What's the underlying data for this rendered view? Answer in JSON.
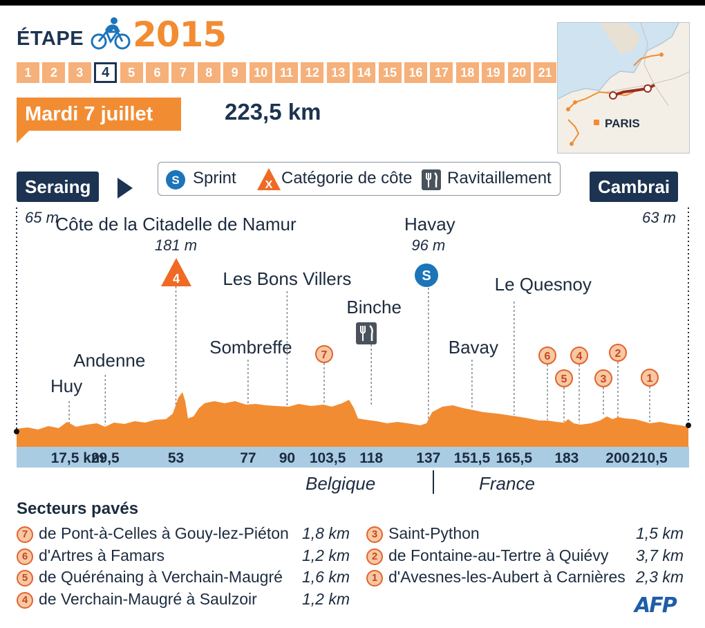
{
  "header": {
    "etape_label": "ÉTAPE",
    "year": "2015",
    "stages": [
      "1",
      "2",
      "3",
      "4",
      "5",
      "6",
      "7",
      "8",
      "9",
      "10",
      "11",
      "12",
      "13",
      "14",
      "15",
      "16",
      "17",
      "18",
      "19",
      "20",
      "21"
    ],
    "current_stage": "4",
    "date": "Mardi 7 juillet",
    "distance": "223,5 km"
  },
  "map": {
    "city_label": "PARIS"
  },
  "legend": {
    "sprint_badge": "S",
    "sprint": "Sprint",
    "climb_badge": "X",
    "climb": "Catégorie de côte",
    "feed": "Ravitaillement"
  },
  "start": {
    "name": "Seraing",
    "altitude": "65 m"
  },
  "finish": {
    "name": "Cambrai",
    "altitude": "63 m"
  },
  "places": [
    {
      "name": "Huy",
      "km": 17.5
    },
    {
      "name": "Andenne",
      "km": 29.5
    },
    {
      "name": "Côte de la Citadelle de Namur",
      "km": 53,
      "altitude": "181 m",
      "category": "4"
    },
    {
      "name": "Sombreffe",
      "km": 77
    },
    {
      "name": "Les Bons Villers",
      "km": 90
    },
    {
      "name": "Binche",
      "km": 118
    },
    {
      "name": "Havay",
      "km": 137,
      "altitude": "96 m",
      "badge": "S"
    },
    {
      "name": "Bavay",
      "km": 151.5
    },
    {
      "name": "Le Quesnoy",
      "km": 165.5
    }
  ],
  "km_ticks": [
    "17,5 km",
    "29,5",
    "53",
    "77",
    "90",
    "103,5",
    "118",
    "137",
    "151,5",
    "165,5",
    "183",
    "200",
    "210,5"
  ],
  "countries": {
    "left": "Belgique",
    "right": "France"
  },
  "sector_markers": [
    "7",
    "6",
    "5",
    "4",
    "3",
    "2",
    "1"
  ],
  "sectors_title": "Secteurs pavés",
  "sectors": [
    {
      "num": "7",
      "name": "de Pont-à-Celles à Gouy-lez-Piéton",
      "length": "1,8 km"
    },
    {
      "num": "6",
      "name": "d'Artres à Famars",
      "length": "1,2 km"
    },
    {
      "num": "5",
      "name": "de Quérénaing à  Verchain-Maugré",
      "length": "1,6 km"
    },
    {
      "num": "4",
      "name": "de Verchain-Maugré à Saulzoir",
      "length": "1,2 km"
    },
    {
      "num": "3",
      "name": "Saint-Python",
      "length": "1,5 km"
    },
    {
      "num": "2",
      "name": "de Fontaine-au-Tertre à Quiévy",
      "length": "3,7 km"
    },
    {
      "num": "1",
      "name": "d'Avesnes-les-Aubert à Carnières",
      "length": "2,3 km"
    }
  ],
  "credit": "AFP",
  "colors": {
    "navy": "#1c3351",
    "orange": "#f28c32",
    "light_orange": "#f6b07a",
    "axis_blue": "#a9cce3"
  }
}
